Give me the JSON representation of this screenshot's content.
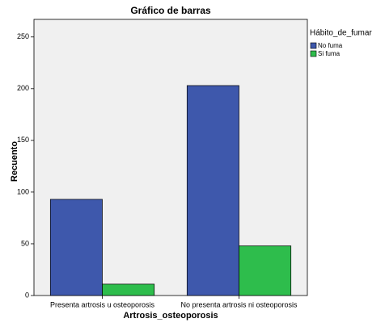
{
  "chart_data": {
    "type": "bar",
    "title": "Gráfico de barras",
    "x_label": "Artrosis_osteoporosis",
    "y_label": "Recuento",
    "legend_title": "Hábito_de_fumar",
    "legend_position": "right",
    "categories": [
      "Presenta artrosis u osteoporosis",
      "No presenta artrosis ni osteoporosis"
    ],
    "series": [
      {
        "name": "No fuma",
        "color": "#3e58ac",
        "values": [
          93,
          203
        ]
      },
      {
        "name": "Si fuma",
        "color": "#2ebd4c",
        "values": [
          11,
          48
        ]
      }
    ],
    "ylim": [
      0,
      267
    ],
    "yticks": [
      0,
      50,
      100,
      150,
      200,
      250
    ],
    "grid": false
  }
}
